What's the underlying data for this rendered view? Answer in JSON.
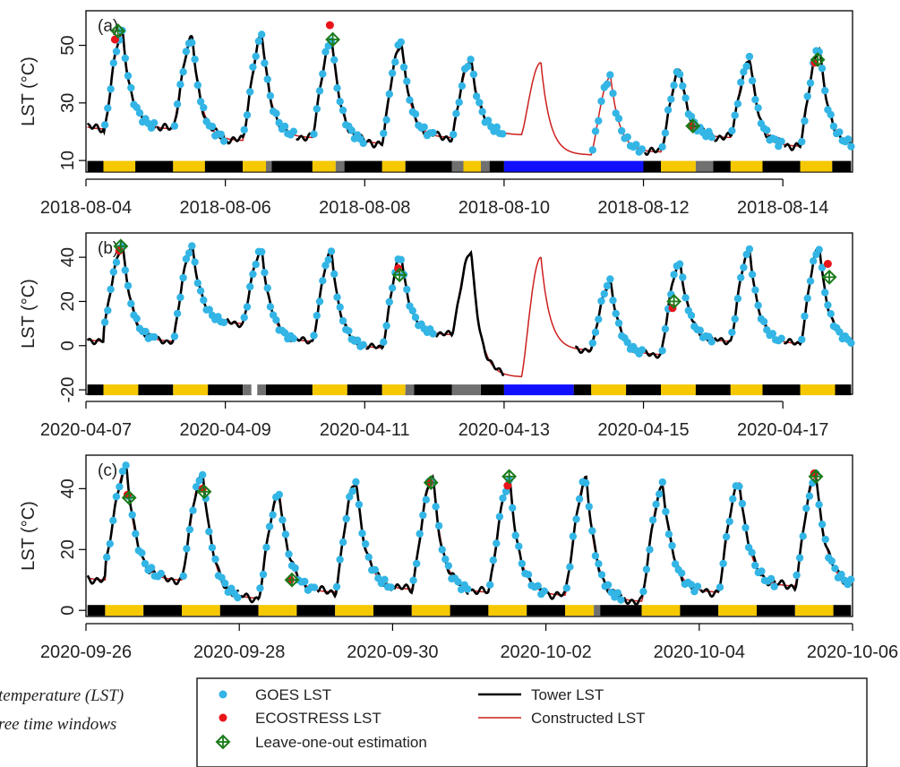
{
  "colors": {
    "goes": "#33b5e5",
    "ecostress": "#e8141a",
    "loo": "#1a7a1a",
    "tower": "#000000",
    "constructed": "#cc1f1f",
    "bar": {
      "K": "#000000",
      "Y": "#f5c800",
      "G": "#707070",
      "B": "#1010ff",
      "W": "#ffffff"
    }
  },
  "legend": {
    "goes": "GOES LST",
    "ecostress": "ECOSTRESS LST",
    "loo": "Leave-one-out estimation",
    "tower": "Tower LST",
    "constructed": "Constructed LST"
  },
  "caption": {
    "line1": "temperature (LST)",
    "line2": "ree time windows"
  },
  "chart_data": [
    {
      "type": "line",
      "panel_label": "(a)",
      "ylabel": "LST (°C)",
      "x_type": "day",
      "xlim": [
        "2018-08-04",
        "2018-08-15"
      ],
      "ylim": [
        6,
        62
      ],
      "yticks": [
        10,
        30,
        50
      ],
      "xticks": [
        "2018-08-04",
        "2018-08-06",
        "2018-08-08",
        "2018-08-10",
        "2018-08-12",
        "2018-08-14"
      ],
      "bar_y": 8,
      "diurnal": {
        "days": [
          "2018-08-04",
          "2018-08-05",
          "2018-08-06",
          "2018-08-07",
          "2018-08-08",
          "2018-08-09",
          "2018-08-10",
          "2018-08-11",
          "2018-08-12",
          "2018-08-13",
          "2018-08-14"
        ],
        "peaks": [
          54,
          52,
          53,
          52,
          51,
          45,
          44,
          39,
          41,
          45,
          49
        ],
        "mins": [
          19,
          21,
          17,
          18,
          16,
          18,
          19,
          12,
          13,
          18,
          15
        ],
        "tower_days": [
          0,
          1,
          2,
          3,
          4,
          5,
          8,
          9,
          10
        ],
        "goes_days": [
          0,
          1,
          2,
          3,
          4,
          5,
          7,
          8,
          9,
          10
        ]
      },
      "series": [
        {
          "name": "ECOSTRESS LST",
          "x": [
            "2018-08-04T10:00",
            "2018-08-07T12:00",
            "2018-08-12T16:30",
            "2018-08-14T11:00"
          ],
          "y": [
            52,
            57,
            22,
            44
          ]
        },
        {
          "name": "Leave-one-out estimation",
          "x": [
            "2018-08-04T11:00",
            "2018-08-07T13:00",
            "2018-08-12T17:00",
            "2018-08-14T12:00"
          ],
          "y": [
            55,
            52,
            22,
            45
          ]
        }
      ],
      "bar_segments": [
        [
          "2018-08-04",
          "K"
        ],
        [
          "2018-08-04T06:00",
          "Y"
        ],
        [
          "2018-08-04T17:00",
          "K"
        ],
        [
          "2018-08-05T06:00",
          "Y"
        ],
        [
          "2018-08-05T17:00",
          "K"
        ],
        [
          "2018-08-06T06:00",
          "Y"
        ],
        [
          "2018-08-06T14:00",
          "G"
        ],
        [
          "2018-08-06T16:00",
          "K"
        ],
        [
          "2018-08-07T06:00",
          "Y"
        ],
        [
          "2018-08-07T14:00",
          "G"
        ],
        [
          "2018-08-07T17:00",
          "K"
        ],
        [
          "2018-08-08T06:00",
          "Y"
        ],
        [
          "2018-08-08T14:00",
          "K"
        ],
        [
          "2018-08-09T06:00",
          "G"
        ],
        [
          "2018-08-09T10:00",
          "Y"
        ],
        [
          "2018-08-09T16:00",
          "G"
        ],
        [
          "2018-08-09T19:00",
          "K"
        ],
        [
          "2018-08-10",
          "B"
        ],
        [
          "2018-08-12",
          "K"
        ],
        [
          "2018-08-12T06:00",
          "Y"
        ],
        [
          "2018-08-12T18:00",
          "G"
        ],
        [
          "2018-08-13",
          "K"
        ],
        [
          "2018-08-13T06:00",
          "Y"
        ],
        [
          "2018-08-13T17:00",
          "K"
        ],
        [
          "2018-08-14T06:00",
          "Y"
        ],
        [
          "2018-08-14T17:00",
          "K"
        ]
      ]
    },
    {
      "type": "line",
      "panel_label": "(b)",
      "ylabel": "LST (°C)",
      "x_type": "day",
      "xlim": [
        "2020-04-07",
        "2020-04-18"
      ],
      "ylim": [
        -22,
        51
      ],
      "yticks": [
        -20,
        0,
        20,
        40
      ],
      "xticks": [
        "2020-04-07",
        "2020-04-09",
        "2020-04-11",
        "2020-04-13",
        "2020-04-15",
        "2020-04-17"
      ],
      "bar_y": -20,
      "diurnal": {
        "days": [
          "2020-04-07",
          "2020-04-08",
          "2020-04-09",
          "2020-04-10",
          "2020-04-11",
          "2020-04-12",
          "2020-04-13",
          "2020-04-14",
          "2020-04-15",
          "2020-04-16",
          "2020-04-17"
        ],
        "peaks": [
          45,
          45,
          43,
          42,
          40,
          42,
          40,
          29,
          38,
          43,
          44
        ],
        "mins": [
          7,
          2,
          10,
          2,
          -1,
          5,
          -14,
          -2,
          -4,
          2,
          1
        ],
        "tower_days": [
          0,
          1,
          2,
          3,
          4,
          5,
          7,
          8,
          9,
          10
        ],
        "goes_days": [
          0,
          1,
          2,
          3,
          4,
          7,
          8,
          9,
          10
        ]
      },
      "series": [
        {
          "name": "ECOSTRESS LST",
          "x": [
            "2020-04-07T11:30",
            "2020-04-11T11:30",
            "2020-04-15T10:00",
            "2020-04-17T15:30"
          ],
          "y": [
            43,
            35,
            17,
            37
          ]
        },
        {
          "name": "Leave-one-out estimation",
          "x": [
            "2020-04-07T12:00",
            "2020-04-11T12:00",
            "2020-04-15T10:30",
            "2020-04-17T16:00"
          ],
          "y": [
            45,
            32,
            20,
            31
          ]
        }
      ],
      "bar_segments": [
        [
          "2020-04-07",
          "K"
        ],
        [
          "2020-04-07T06:00",
          "Y"
        ],
        [
          "2020-04-07T18:00",
          "K"
        ],
        [
          "2020-04-08T06:00",
          "Y"
        ],
        [
          "2020-04-08T18:00",
          "K"
        ],
        [
          "2020-04-09T06:00",
          "G"
        ],
        [
          "2020-04-09T09:00",
          "W"
        ],
        [
          "2020-04-09T11:00",
          "G"
        ],
        [
          "2020-04-09T14:00",
          "K"
        ],
        [
          "2020-04-10T06:00",
          "Y"
        ],
        [
          "2020-04-10T18:00",
          "K"
        ],
        [
          "2020-04-11T06:00",
          "Y"
        ],
        [
          "2020-04-11T14:00",
          "G"
        ],
        [
          "2020-04-11T17:00",
          "K"
        ],
        [
          "2020-04-12T06:00",
          "G"
        ],
        [
          "2020-04-12T16:00",
          "K"
        ],
        [
          "2020-04-13",
          "B"
        ],
        [
          "2020-04-14",
          "K"
        ],
        [
          "2020-04-14T06:00",
          "Y"
        ],
        [
          "2020-04-14T18:00",
          "K"
        ],
        [
          "2020-04-15T06:00",
          "Y"
        ],
        [
          "2020-04-15T18:00",
          "K"
        ],
        [
          "2020-04-16T06:00",
          "Y"
        ],
        [
          "2020-04-16T17:00",
          "K"
        ],
        [
          "2020-04-17T06:00",
          "Y"
        ],
        [
          "2020-04-17T18:00",
          "K"
        ]
      ]
    },
    {
      "type": "line",
      "panel_label": "(c)",
      "ylabel": "LST (°C)",
      "x_type": "day",
      "xlim": [
        "2020-09-26",
        "2020-10-06"
      ],
      "ylim": [
        -2,
        51
      ],
      "yticks": [
        0,
        20,
        40
      ],
      "xticks": [
        "2020-09-26",
        "2020-09-28",
        "2020-09-30",
        "2020-10-02",
        "2020-10-04",
        "2020-10-06"
      ],
      "bar_y": 0,
      "diurnal": {
        "days": [
          "2020-09-26",
          "2020-09-27",
          "2020-09-28",
          "2020-09-29",
          "2020-09-30",
          "2020-10-01",
          "2020-10-02",
          "2020-10-03",
          "2020-10-04",
          "2020-10-05"
        ],
        "peaks": [
          47,
          45,
          38,
          42,
          43,
          42,
          43,
          41,
          42,
          44
        ],
        "mins": [
          14,
          10,
          4,
          6,
          7,
          6,
          5,
          3,
          6,
          8
        ],
        "tower_days": [
          0,
          1,
          2,
          3,
          4,
          5,
          6,
          7,
          8,
          9
        ],
        "goes_days": [
          0,
          1,
          2,
          3,
          4,
          5,
          6,
          7,
          8,
          9
        ]
      },
      "series": [
        {
          "name": "ECOSTRESS LST",
          "x": [
            "2020-09-26T13:00",
            "2020-09-27T12:30",
            "2020-09-28T16:00",
            "2020-09-30T11:30",
            "2020-10-01T12:00",
            "2020-10-05T12:00"
          ],
          "y": [
            38,
            40,
            10,
            42,
            41,
            45
          ]
        },
        {
          "name": "Leave-one-out estimation",
          "x": [
            "2020-09-26T13:30",
            "2020-09-27T13:00",
            "2020-09-28T16:30",
            "2020-09-30T12:00",
            "2020-10-01T12:30",
            "2020-10-05T12:30"
          ],
          "y": [
            37,
            39,
            10,
            42,
            44,
            44
          ]
        }
      ],
      "bar_segments": [
        [
          "2020-09-26",
          "K"
        ],
        [
          "2020-09-26T06:00",
          "Y"
        ],
        [
          "2020-09-26T18:00",
          "K"
        ],
        [
          "2020-09-27T06:00",
          "Y"
        ],
        [
          "2020-09-27T18:00",
          "K"
        ],
        [
          "2020-09-28T06:00",
          "Y"
        ],
        [
          "2020-09-28T18:00",
          "K"
        ],
        [
          "2020-09-29T06:00",
          "Y"
        ],
        [
          "2020-09-29T18:00",
          "K"
        ],
        [
          "2020-09-30T06:00",
          "Y"
        ],
        [
          "2020-09-30T18:00",
          "K"
        ],
        [
          "2020-10-01T06:00",
          "Y"
        ],
        [
          "2020-10-01T18:00",
          "K"
        ],
        [
          "2020-10-02T06:00",
          "Y"
        ],
        [
          "2020-10-02T15:00",
          "G"
        ],
        [
          "2020-10-02T17:00",
          "K"
        ],
        [
          "2020-10-03T06:00",
          "Y"
        ],
        [
          "2020-10-03T18:00",
          "K"
        ],
        [
          "2020-10-04T06:00",
          "Y"
        ],
        [
          "2020-10-04T18:00",
          "K"
        ],
        [
          "2020-10-05T06:00",
          "Y"
        ],
        [
          "2020-10-05T18:00",
          "K"
        ]
      ]
    }
  ]
}
